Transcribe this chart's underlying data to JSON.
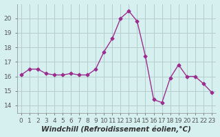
{
  "x": [
    0,
    1,
    2,
    3,
    4,
    5,
    6,
    7,
    8,
    9,
    10,
    11,
    12,
    13,
    14,
    15,
    16,
    17,
    18,
    19,
    20,
    21,
    22,
    23
  ],
  "y": [
    16.1,
    16.5,
    16.5,
    16.2,
    16.1,
    16.1,
    16.2,
    16.1,
    16.1,
    16.5,
    17.7,
    18.6,
    20.0,
    20.5,
    19.8,
    17.4,
    14.4,
    14.2,
    15.9,
    16.8,
    16.0,
    16.0,
    15.5,
    14.9
  ],
  "line_color": "#9b2d8e",
  "marker": "D",
  "marker_size": 2.5,
  "linewidth": 1.0,
  "xlabel": "Windchill (Refroidissement éolien,°C)",
  "xlim": [
    -0.5,
    23.5
  ],
  "ylim": [
    13.5,
    21.0
  ],
  "yticks": [
    14,
    15,
    16,
    17,
    18,
    19,
    20
  ],
  "xticks": [
    0,
    1,
    2,
    3,
    4,
    5,
    6,
    7,
    8,
    9,
    10,
    11,
    12,
    13,
    14,
    15,
    16,
    17,
    18,
    19,
    20,
    21,
    22,
    23
  ],
  "bg_color": "#d6f0f0",
  "grid_color": "#b0c8c8",
  "tick_label_fontsize": 6.5,
  "xlabel_fontsize": 7.5
}
